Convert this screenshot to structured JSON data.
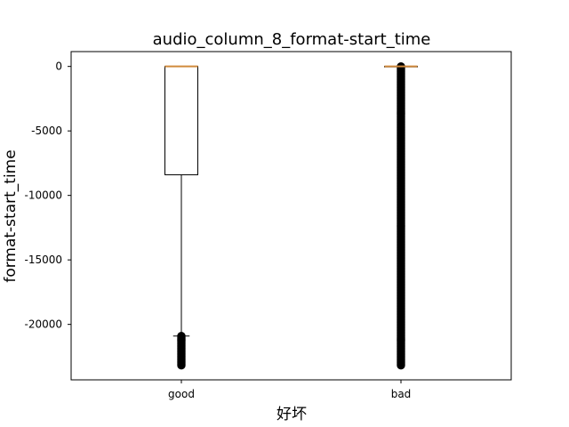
{
  "chart_data": {
    "type": "box",
    "title": "audio_column_8_format-start_time",
    "xlabel": "好坏",
    "ylabel": "format-start_time",
    "categories": [
      "good",
      "bad"
    ],
    "ylim": [
      -24300,
      1150
    ],
    "yticks": [
      0,
      -5000,
      -10000,
      -15000,
      -20000
    ],
    "ytick_labels": [
      "0",
      "-5000",
      "-10000",
      "-15000",
      "-20000"
    ],
    "boxes": [
      {
        "category": "good",
        "q1": -8400,
        "median": 0,
        "q3": 0,
        "whisker_low": -20900,
        "whisker_high": 0,
        "outliers_range": [
          -23200,
          -20900
        ]
      },
      {
        "category": "bad",
        "q1": 0,
        "median": 0,
        "q3": 0,
        "whisker_low": 0,
        "whisker_high": 0,
        "outliers_range": [
          -23200,
          0
        ]
      }
    ],
    "colors": {
      "box": "#000000",
      "median": "#d08a3c",
      "outlier": "#000000"
    },
    "grid": false,
    "legend": "none"
  }
}
